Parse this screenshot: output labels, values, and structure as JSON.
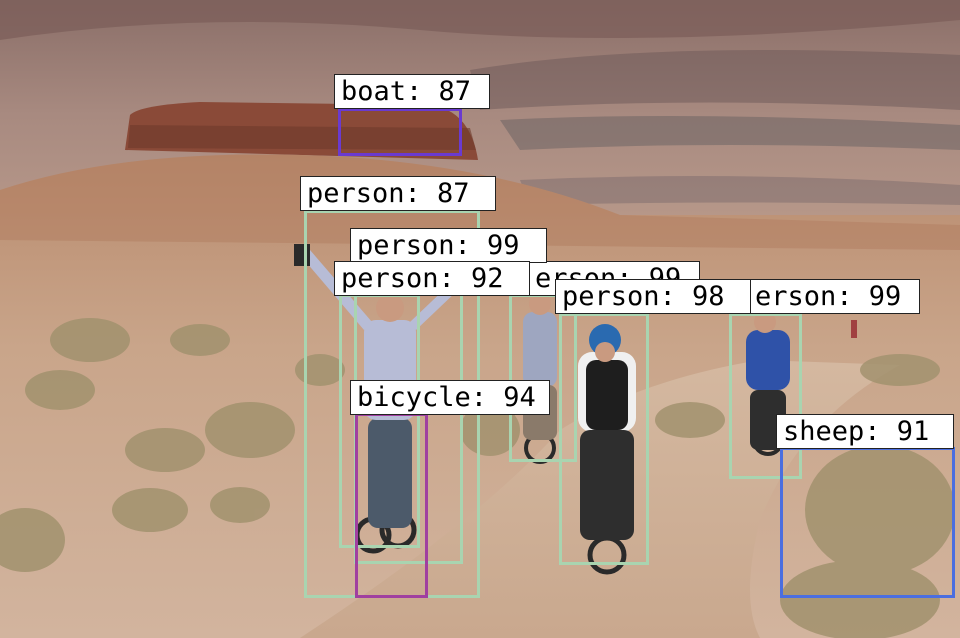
{
  "image": {
    "description_free": true,
    "colors": {
      "person": "#a9d4b0",
      "bicycle": "#a040a0",
      "boat": "#6a3ad0",
      "sheep": "#4a6ee0",
      "label_bg": "#ffffff",
      "label_text": "#000000"
    }
  },
  "detections": [
    {
      "id": "boat-1",
      "class": "boat",
      "score": 87,
      "label": "boat: 87",
      "color": "#6a3ad0"
    },
    {
      "id": "person-1",
      "class": "person",
      "score": 87,
      "label": "person: 87",
      "color": "#a9d4b0"
    },
    {
      "id": "person-2",
      "class": "person",
      "score": 99,
      "label": "person: 99",
      "color": "#a9d4b0"
    },
    {
      "id": "person-3",
      "class": "person",
      "score": 92,
      "label": "person: 92",
      "color": "#a9d4b0"
    },
    {
      "id": "person-4",
      "class": "person",
      "score": 99,
      "label": "erson: 99",
      "color": "#a9d4b0"
    },
    {
      "id": "person-5",
      "class": "person",
      "score": 98,
      "label": "person: 98",
      "color": "#a9d4b0"
    },
    {
      "id": "person-6",
      "class": "person",
      "score": 99,
      "label": "erson: 99",
      "color": "#a9d4b0"
    },
    {
      "id": "bicycle-1",
      "class": "bicycle",
      "score": 94,
      "label": "bicycle: 94",
      "color": "#a040a0"
    },
    {
      "id": "sheep-1",
      "class": "sheep",
      "score": 91,
      "label": "sheep: 91",
      "color": "#4a6ee0"
    }
  ]
}
